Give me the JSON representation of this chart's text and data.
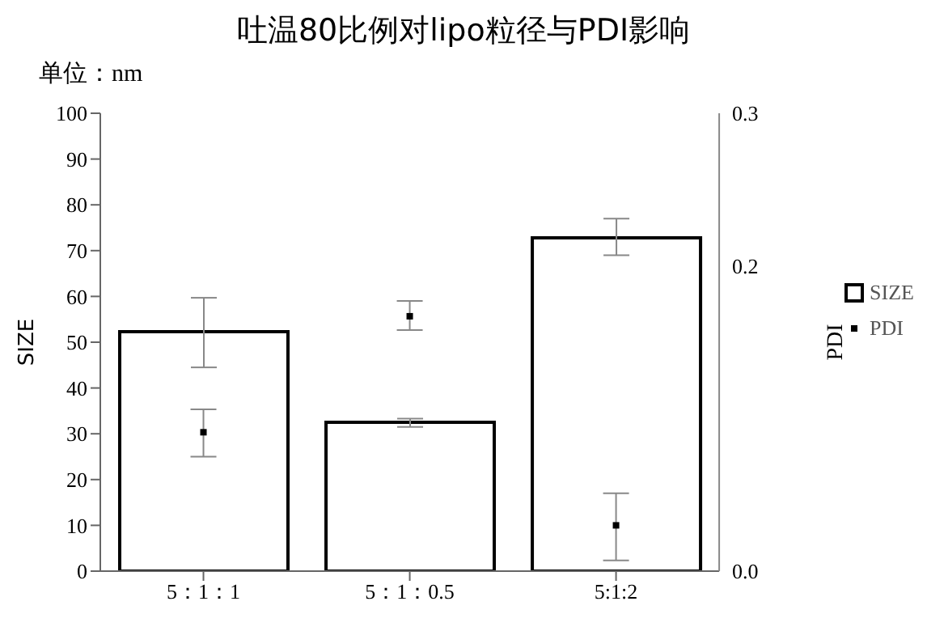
{
  "chart_data": {
    "type": "bar",
    "title": "吐温80比例对lipo粒径与PDI影响",
    "annotations": [
      "单位：nm"
    ],
    "ylabel": "SIZE",
    "y2label": "PDI",
    "categories": [
      "5：1：1",
      "5：1：0.5",
      "5:1:2"
    ],
    "series": [
      {
        "name": "SIZE",
        "color": "#000000",
        "values": [
          52.3,
          32.5,
          72.8
        ],
        "errors": [
          [
            44.5,
            59.7
          ],
          [
            31.5,
            33.3
          ],
          [
            69,
            77
          ]
        ]
      },
      {
        "name": "PDI",
        "type": "scatter",
        "axis": "y2",
        "color": "#000000",
        "x": [
          "5：1：1",
          "5：1：0.5",
          "5:1:2"
        ],
        "values": [
          0.091,
          0.167,
          0.03
        ],
        "errors": [
          [
            0.075,
            0.106
          ],
          [
            0.158,
            0.177
          ],
          [
            0.007,
            0.051
          ]
        ]
      }
    ],
    "ylim": [
      0,
      100
    ],
    "yticks": [
      0,
      10,
      20,
      30,
      40,
      50,
      60,
      70,
      80,
      90,
      100
    ],
    "y2lim": [
      0,
      0.3
    ],
    "y2ticks": [
      {
        "value": 0,
        "label": "0.0"
      },
      0.2,
      0.3
    ],
    "marker": "square",
    "grid": false,
    "legend": "right"
  }
}
